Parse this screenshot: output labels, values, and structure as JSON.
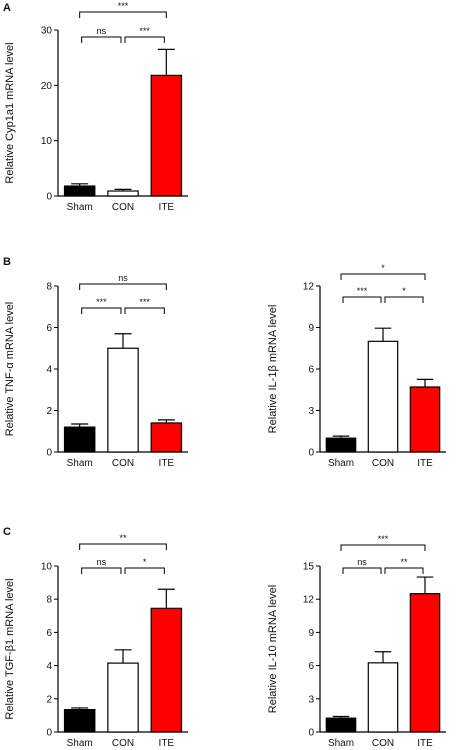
{
  "panels": [
    {
      "letter": "A",
      "index": 0
    },
    {
      "letter": "B",
      "index": 1
    },
    {
      "letter": "C",
      "index": 3
    }
  ],
  "chart_data": [
    {
      "type": "bar",
      "ylabel": "Relative Cyp1a1 mRNA level",
      "categories": [
        "Sham",
        "CON",
        "ITE"
      ],
      "values": [
        1.8,
        0.9,
        21.8
      ],
      "errors": [
        0.4,
        0.3,
        4.7
      ],
      "colors": [
        "#000000",
        "#ffffff",
        "#ff0000"
      ],
      "ylim": [
        0,
        30
      ],
      "yticks": [
        "0",
        "10",
        "20",
        "30"
      ],
      "tickvals": [
        0,
        10,
        20,
        30
      ],
      "significance": [
        {
          "from": 0,
          "to": 1,
          "level": 0,
          "label": "ns"
        },
        {
          "from": 1,
          "to": 2,
          "level": 0,
          "label": "***"
        },
        {
          "from": 0,
          "to": 2,
          "level": 1,
          "label": "***"
        }
      ]
    },
    {
      "type": "bar",
      "ylabel": "Relative TNF-α mRNA level",
      "categories": [
        "Sham",
        "CON",
        "ITE"
      ],
      "values": [
        1.2,
        5.0,
        1.4
      ],
      "errors": [
        0.15,
        0.7,
        0.15
      ],
      "colors": [
        "#000000",
        "#ffffff",
        "#ff0000"
      ],
      "ylim": [
        0,
        8
      ],
      "yticks": [
        "0",
        "2",
        "4",
        "6",
        "8"
      ],
      "tickvals": [
        0,
        2,
        4,
        6,
        8
      ],
      "significance": [
        {
          "from": 0,
          "to": 1,
          "level": 0,
          "label": "***"
        },
        {
          "from": 1,
          "to": 2,
          "level": 0,
          "label": "***"
        },
        {
          "from": 0,
          "to": 2,
          "level": 1,
          "label": "ns"
        }
      ]
    },
    {
      "type": "bar",
      "ylabel": "Relative IL-1β mRNA level",
      "categories": [
        "Sham",
        "CON",
        "ITE"
      ],
      "values": [
        1.0,
        8.0,
        4.7
      ],
      "errors": [
        0.15,
        0.95,
        0.55
      ],
      "colors": [
        "#000000",
        "#ffffff",
        "#ff0000"
      ],
      "ylim": [
        0,
        12
      ],
      "yticks": [
        "0",
        "3",
        "6",
        "9",
        "12"
      ],
      "tickvals": [
        0,
        3,
        6,
        9,
        12
      ],
      "significance": [
        {
          "from": 0,
          "to": 1,
          "level": 0,
          "label": "***"
        },
        {
          "from": 1,
          "to": 2,
          "level": 0,
          "label": "*"
        },
        {
          "from": 0,
          "to": 2,
          "level": 1,
          "label": "*"
        }
      ]
    },
    {
      "type": "bar",
      "ylabel": "Relative TGF-β1 mRNA level",
      "categories": [
        "Sham",
        "CON",
        "ITE"
      ],
      "values": [
        1.35,
        4.15,
        7.45
      ],
      "errors": [
        0.1,
        0.8,
        1.15
      ],
      "colors": [
        "#000000",
        "#ffffff",
        "#ff0000"
      ],
      "ylim": [
        0,
        10
      ],
      "yticks": [
        "0",
        "2",
        "4",
        "6",
        "8",
        "10"
      ],
      "tickvals": [
        0,
        2,
        4,
        6,
        8,
        10
      ],
      "significance": [
        {
          "from": 0,
          "to": 1,
          "level": 0,
          "label": "ns"
        },
        {
          "from": 1,
          "to": 2,
          "level": 0,
          "label": "*"
        },
        {
          "from": 0,
          "to": 2,
          "level": 1,
          "label": "**"
        }
      ]
    },
    {
      "type": "bar",
      "ylabel": "Relative IL-10 mRNA level",
      "categories": [
        "Sham",
        "CON",
        "ITE"
      ],
      "values": [
        1.25,
        6.25,
        12.5
      ],
      "errors": [
        0.15,
        1.0,
        1.5
      ],
      "colors": [
        "#000000",
        "#ffffff",
        "#ff0000"
      ],
      "ylim": [
        0,
        15
      ],
      "yticks": [
        "0",
        "3",
        "6",
        "9",
        "12",
        "15"
      ],
      "tickvals": [
        0,
        3,
        6,
        9,
        12,
        15
      ],
      "significance": [
        {
          "from": 0,
          "to": 1,
          "level": 0,
          "label": "ns"
        },
        {
          "from": 1,
          "to": 2,
          "level": 0,
          "label": "**"
        },
        {
          "from": 0,
          "to": 2,
          "level": 1,
          "label": "***"
        }
      ]
    }
  ]
}
